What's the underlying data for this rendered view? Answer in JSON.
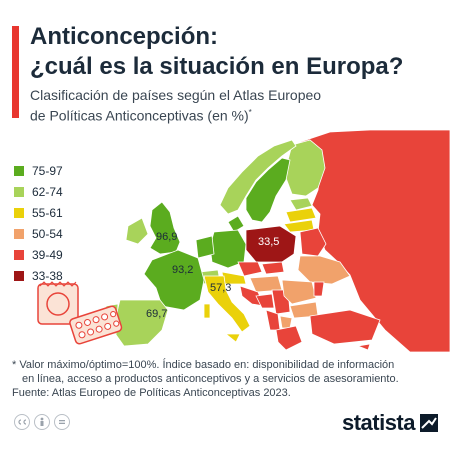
{
  "header": {
    "title_line1": "Anticoncepción:",
    "title_line2": "¿cuál es la situación en Europa?",
    "subtitle_line1": "Clasificación de países según el Atlas Europeo",
    "subtitle_line2": "de Políticas Anticonceptivas (en %)",
    "subtitle_mark": "*",
    "accent_color": "#e8362f"
  },
  "legend": [
    {
      "label": "75-97",
      "color": "#5bac1f"
    },
    {
      "label": "62-74",
      "color": "#a8d35a"
    },
    {
      "label": "55-61",
      "color": "#ead10a"
    },
    {
      "label": "50-54",
      "color": "#f1a26b"
    },
    {
      "label": "39-49",
      "color": "#e8443a"
    },
    {
      "label": "33-38",
      "color": "#9e1616"
    }
  ],
  "map_labels": {
    "uk": "96,9",
    "france": "93,2",
    "spain": "69,7",
    "italy": "57,3",
    "poland": "33,5"
  },
  "map_icons": [
    "contraceptive-condom-icon",
    "contraceptive-pill-pack-icon"
  ],
  "footnote": {
    "line1": "* Valor máximo/óptimo=100%. Índice basado en: disponibilidad de información",
    "line2": "en línea, acceso a productos anticonceptivos y a servicios de asesoramiento.",
    "line3": "Fuente: Atlas Europeo de Políticas Anticonceptivas 2023."
  },
  "license_icons": [
    "cc-icon",
    "by-icon",
    "nd-icon"
  ],
  "brand": {
    "name": "statista",
    "color": "#0d1b2a"
  }
}
